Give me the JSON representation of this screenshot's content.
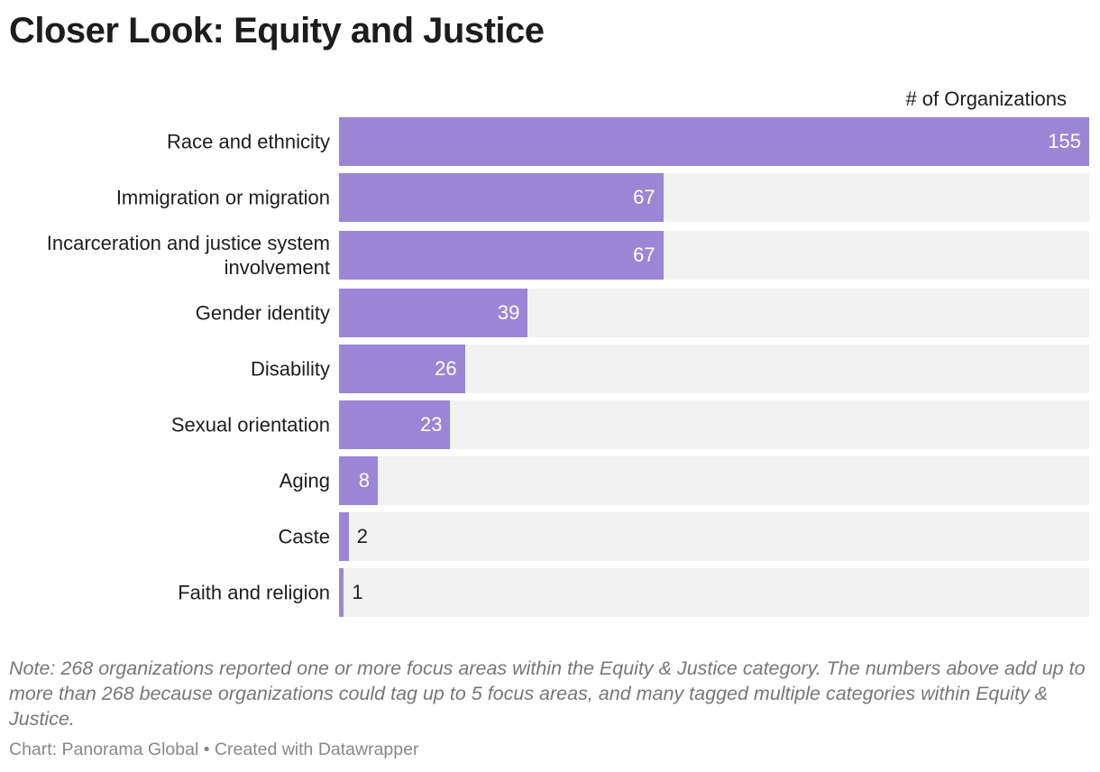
{
  "chart_data": {
    "type": "bar",
    "orientation": "horizontal",
    "title": "Closer Look: Equity and Justice",
    "value_label": "# of Organizations",
    "categories": [
      "Race and ethnicity",
      "Immigration or migration",
      "Incarceration and justice system involvement",
      "Gender identity",
      "Disability",
      "Sexual orientation",
      "Aging",
      "Caste",
      "Faith and religion"
    ],
    "values": [
      155,
      67,
      67,
      39,
      26,
      23,
      8,
      2,
      1
    ],
    "xlim": [
      0,
      155
    ],
    "grid": false,
    "data_labels": true
  },
  "colors": {
    "bar": "#9b86d6",
    "track": "#f2f2f2"
  },
  "note": "Note: 268 organizations reported one or more focus areas within the Equity & Justice category. The numbers above add up to more than 268 because organizations could tag up to 5 focus areas, and many tagged multiple categories within Equity & Justice.",
  "credit": "Chart: Panorama Global • Created with Datawrapper"
}
